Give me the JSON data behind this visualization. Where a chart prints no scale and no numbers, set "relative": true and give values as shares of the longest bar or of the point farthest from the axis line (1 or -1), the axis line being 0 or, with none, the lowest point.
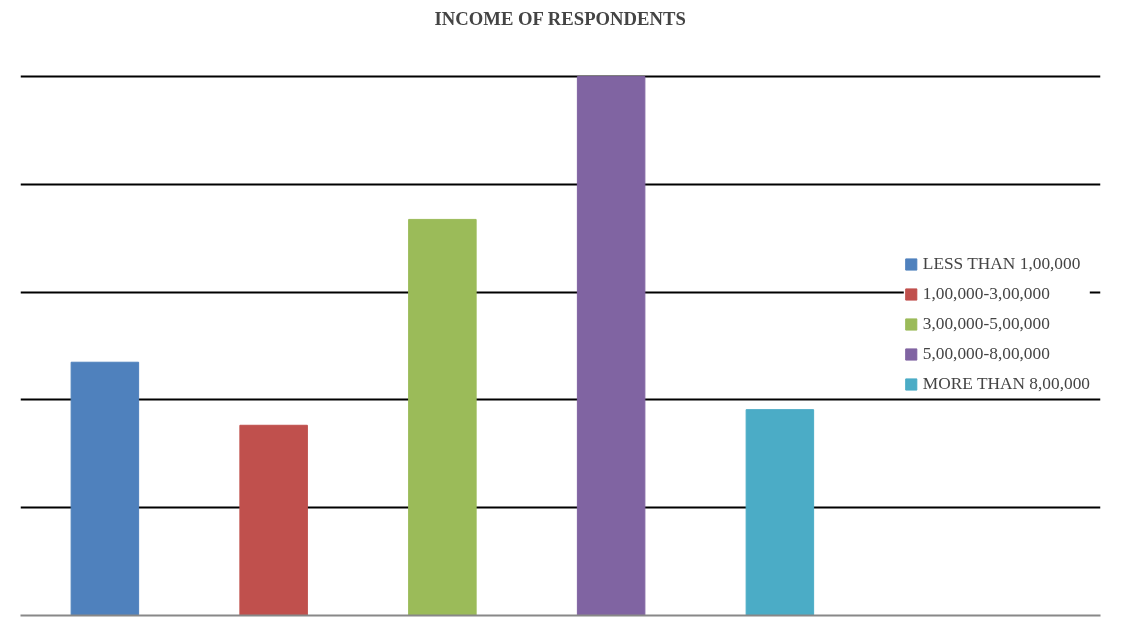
{
  "chart_data": {
    "type": "bar",
    "title": "INCOME OF RESPONDENTS",
    "relative": true,
    "stacked": true,
    "categories": [
      null,
      null,
      null,
      null,
      null
    ],
    "series": [
      {
        "name": "LESS THAN 1,00,000",
        "color": "#4f81bd",
        "values": [
          0.47,
          null,
          null,
          null,
          null
        ]
      },
      {
        "name": "1,00,000-3,00,000",
        "color": "#c0504d",
        "values": [
          null,
          0.353,
          null,
          null,
          null
        ]
      },
      {
        "name": "3,00,000-5,00,000",
        "color": "#9bbb59",
        "values": [
          null,
          null,
          0.735,
          null,
          null
        ]
      },
      {
        "name": "5,00,000-8,00,000",
        "color": "#8064a2",
        "values": [
          null,
          null,
          null,
          1,
          null
        ]
      },
      {
        "name": "MORE THAN 8,00,000",
        "color": "#4bacc6",
        "values": [
          null,
          null,
          null,
          null,
          0.382
        ]
      }
    ],
    "grid": "y",
    "legend": "right"
  }
}
